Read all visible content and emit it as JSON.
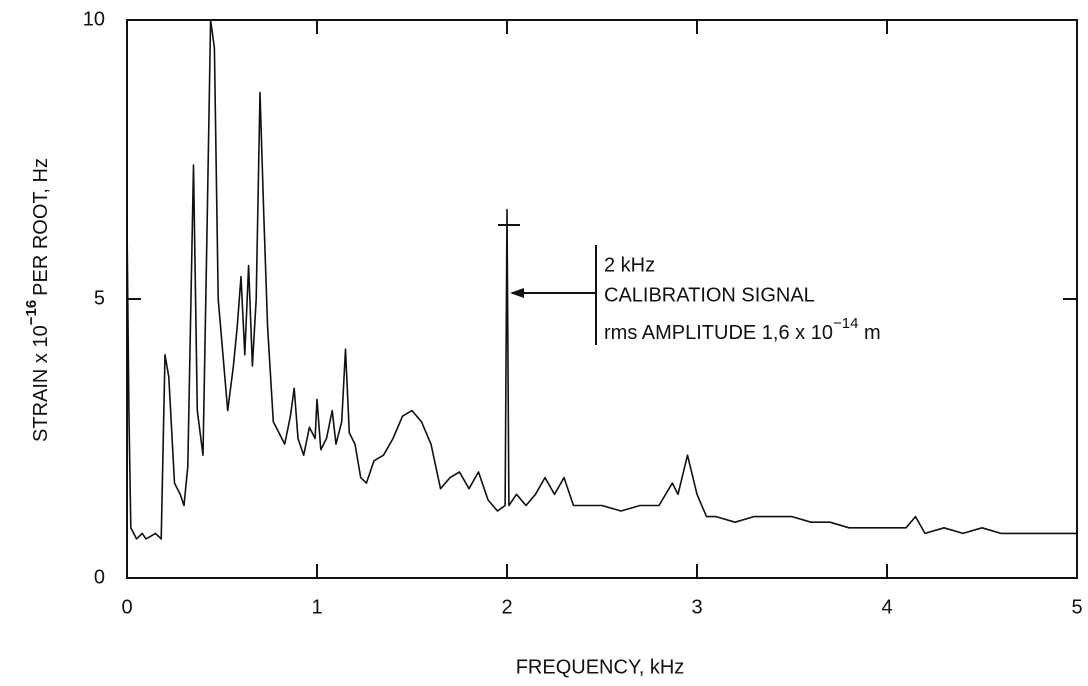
{
  "chart_data": {
    "type": "line",
    "y_label": {
      "main": "STRAIN x 10",
      "exponent": "−16",
      "rest": "PER ROOT, Hz"
    },
    "x_label": "FREQUENCY, kHz",
    "annotation": {
      "line1": "2 kHz",
      "line2": "CALIBRATION SIGNAL",
      "line3": {
        "main": "rms AMPLITUDE 1,6 x 10",
        "exponent": "−14",
        "rest": " m"
      }
    },
    "xlim": [
      0,
      5
    ],
    "xticks": [
      0,
      1,
      2,
      3,
      4,
      5
    ],
    "ylim": [
      0,
      10
    ],
    "yticks": [
      0,
      5,
      10
    ],
    "color": "#111111",
    "x": [
      0.0,
      0.01,
      0.02,
      0.05,
      0.08,
      0.1,
      0.15,
      0.18,
      0.2,
      0.22,
      0.25,
      0.28,
      0.3,
      0.32,
      0.35,
      0.37,
      0.4,
      0.42,
      0.44,
      0.46,
      0.48,
      0.5,
      0.53,
      0.56,
      0.58,
      0.6,
      0.62,
      0.64,
      0.66,
      0.68,
      0.7,
      0.72,
      0.74,
      0.77,
      0.8,
      0.83,
      0.86,
      0.88,
      0.9,
      0.93,
      0.96,
      0.99,
      1.0,
      1.02,
      1.05,
      1.08,
      1.1,
      1.13,
      1.15,
      1.17,
      1.2,
      1.23,
      1.26,
      1.3,
      1.35,
      1.4,
      1.45,
      1.5,
      1.55,
      1.6,
      1.65,
      1.7,
      1.75,
      1.8,
      1.85,
      1.9,
      1.95,
      1.99,
      2.0,
      2.01,
      2.05,
      2.1,
      2.15,
      2.2,
      2.25,
      2.3,
      2.35,
      2.4,
      2.5,
      2.6,
      2.7,
      2.8,
      2.87,
      2.9,
      2.95,
      3.0,
      3.05,
      3.1,
      3.2,
      3.3,
      3.4,
      3.5,
      3.6,
      3.7,
      3.8,
      3.9,
      4.0,
      4.1,
      4.15,
      4.2,
      4.3,
      4.4,
      4.5,
      4.6,
      4.7,
      4.8,
      4.9,
      5.0
    ],
    "values": [
      6.4,
      3.0,
      0.9,
      0.7,
      0.8,
      0.7,
      0.8,
      0.7,
      4.0,
      3.6,
      1.7,
      1.5,
      1.3,
      2.0,
      7.4,
      3.0,
      2.2,
      6.0,
      10.0,
      9.5,
      5.0,
      4.2,
      3.0,
      3.8,
      4.5,
      5.4,
      4.0,
      5.6,
      3.8,
      5.0,
      8.7,
      6.5,
      4.5,
      2.8,
      2.6,
      2.4,
      2.9,
      3.4,
      2.5,
      2.2,
      2.7,
      2.5,
      3.2,
      2.3,
      2.5,
      3.0,
      2.4,
      2.8,
      4.1,
      2.6,
      2.4,
      1.8,
      1.7,
      2.1,
      2.2,
      2.5,
      2.9,
      3.0,
      2.8,
      2.4,
      1.6,
      1.8,
      1.9,
      1.6,
      1.9,
      1.4,
      1.2,
      1.3,
      6.6,
      1.3,
      1.5,
      1.3,
      1.5,
      1.8,
      1.5,
      1.8,
      1.3,
      1.3,
      1.3,
      1.2,
      1.3,
      1.3,
      1.7,
      1.5,
      2.2,
      1.5,
      1.1,
      1.1,
      1.0,
      1.1,
      1.1,
      1.1,
      1.0,
      1.0,
      0.9,
      0.9,
      0.9,
      0.9,
      1.1,
      0.8,
      0.9,
      0.8,
      0.9,
      0.8,
      0.8,
      0.8,
      0.8,
      0.8
    ]
  }
}
